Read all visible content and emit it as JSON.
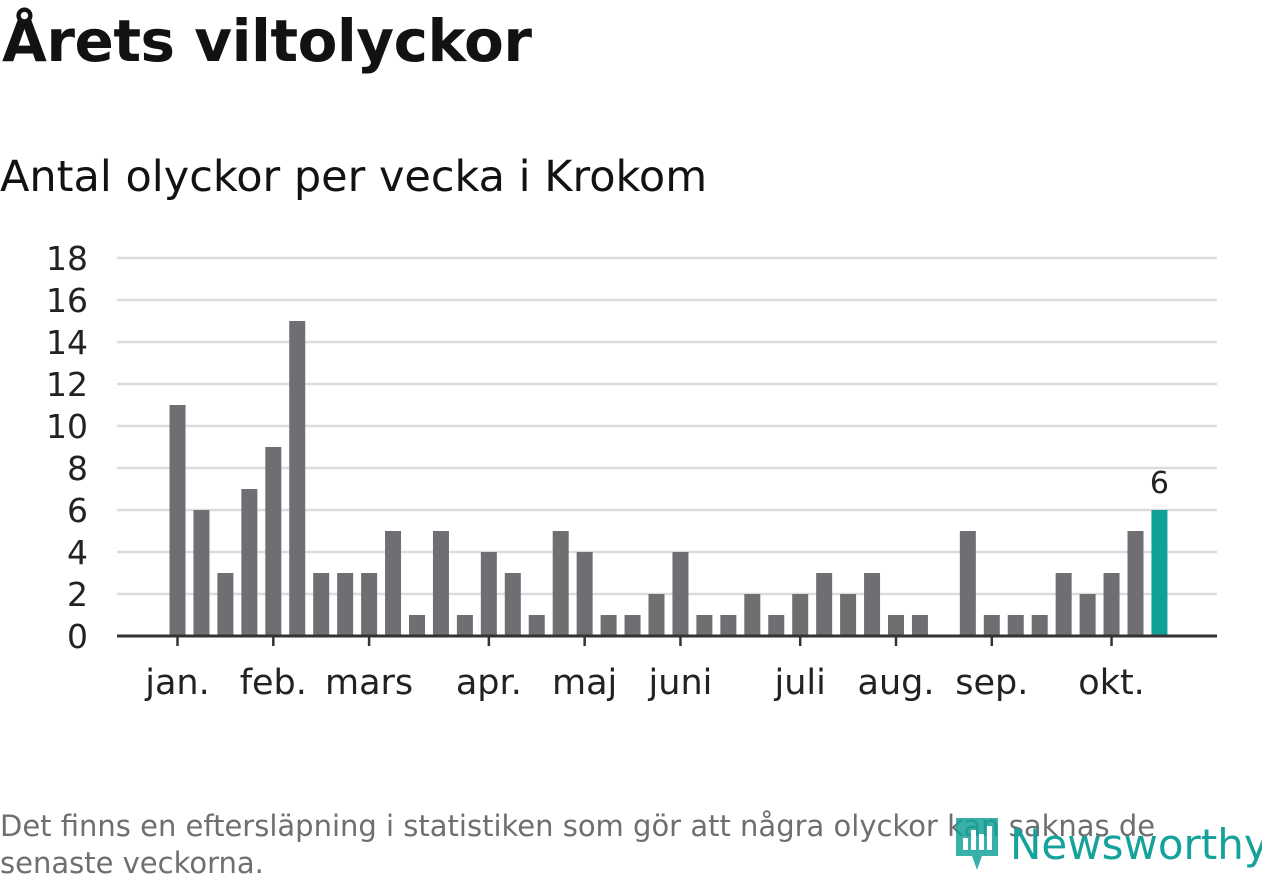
{
  "title": "Årets viltolyckor",
  "subtitle": "Antal olyckor per vecka i Krokom",
  "footnote": "Det finns en eftersläpning i statistiken som gör att några olyckor kan saknas de senaste veckorna.",
  "brand": "Newsworthy",
  "colors": {
    "bar": "#6f6e73",
    "highlight": "#0fa197",
    "grid": "#dcdcdc",
    "axis": "#333333",
    "brand": "#14a29a"
  },
  "chart_data": {
    "type": "bar",
    "title": "Antal olyckor per vecka i Krokom",
    "xlabel": "",
    "ylabel": "",
    "ylim": [
      0,
      18
    ],
    "yticks": [
      0,
      2,
      4,
      6,
      8,
      10,
      12,
      14,
      16,
      18
    ],
    "weeks": [
      1,
      2,
      3,
      4,
      5,
      6,
      7,
      8,
      9,
      10,
      11,
      12,
      13,
      14,
      15,
      16,
      17,
      18,
      19,
      20,
      21,
      22,
      23,
      24,
      25,
      26,
      27,
      28,
      29,
      30,
      31,
      32,
      33,
      34,
      35,
      36,
      37,
      38,
      39,
      40,
      41,
      42
    ],
    "values": [
      11,
      6,
      3,
      7,
      9,
      15,
      3,
      3,
      3,
      5,
      1,
      5,
      1,
      4,
      3,
      1,
      5,
      4,
      1,
      1,
      2,
      4,
      1,
      1,
      2,
      1,
      2,
      3,
      2,
      3,
      1,
      1,
      0,
      5,
      1,
      1,
      1,
      3,
      2,
      3,
      5,
      6
    ],
    "highlight_index": 41,
    "highlight_label": "6",
    "month_labels": [
      {
        "label": "jan.",
        "week": 1
      },
      {
        "label": "feb.",
        "week": 5
      },
      {
        "label": "mars",
        "week": 9
      },
      {
        "label": "apr.",
        "week": 14
      },
      {
        "label": "maj",
        "week": 18
      },
      {
        "label": "juni",
        "week": 22
      },
      {
        "label": "juli",
        "week": 27
      },
      {
        "label": "aug.",
        "week": 31
      },
      {
        "label": "sep.",
        "week": 35
      },
      {
        "label": "okt.",
        "week": 40
      }
    ]
  }
}
